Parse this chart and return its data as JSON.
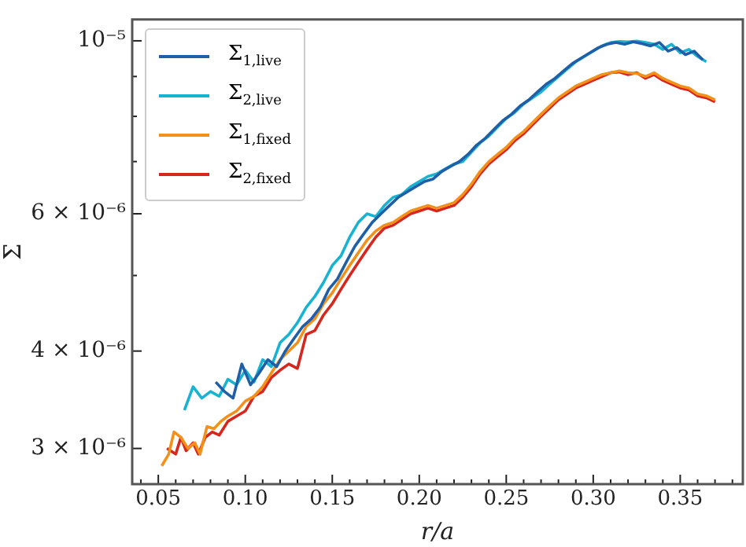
{
  "chart_data": {
    "type": "line",
    "xlabel": "r/a",
    "ylabel": "Σ",
    "log": "y",
    "grid": false,
    "legend": "top left",
    "marker": "none",
    "line_style": "solid",
    "xlim": [
      0.035,
      0.386
    ],
    "ylim": [
      2.7e-06,
      1.065e-05
    ],
    "xticks": [
      {
        "value": 0.04,
        "label": null
      },
      0.05,
      {
        "value": 0.06,
        "label": null
      },
      {
        "value": 0.07,
        "label": null
      },
      {
        "value": 0.08,
        "label": null
      },
      {
        "value": 0.09,
        "label": null
      },
      {
        "value": 0.1,
        "label": "0.10"
      },
      {
        "value": 0.11,
        "label": null
      },
      {
        "value": 0.12,
        "label": null
      },
      {
        "value": 0.13,
        "label": null
      },
      {
        "value": 0.14,
        "label": null
      },
      0.15,
      {
        "value": 0.16,
        "label": null
      },
      {
        "value": 0.17,
        "label": null
      },
      {
        "value": 0.18,
        "label": null
      },
      {
        "value": 0.19,
        "label": null
      },
      {
        "value": 0.2,
        "label": "0.20"
      },
      {
        "value": 0.21,
        "label": null
      },
      {
        "value": 0.22,
        "label": null
      },
      {
        "value": 0.23,
        "label": null
      },
      {
        "value": 0.24,
        "label": null
      },
      0.25,
      {
        "value": 0.26,
        "label": null
      },
      {
        "value": 0.27,
        "label": null
      },
      {
        "value": 0.28,
        "label": null
      },
      {
        "value": 0.29,
        "label": null
      },
      {
        "value": 0.3,
        "label": "0.30"
      },
      {
        "value": 0.31,
        "label": null
      },
      {
        "value": 0.32,
        "label": null
      },
      {
        "value": 0.33,
        "label": null
      },
      {
        "value": 0.34,
        "label": null
      },
      0.35,
      {
        "value": 0.36,
        "label": null
      },
      {
        "value": 0.37,
        "label": null
      },
      {
        "value": 0.38,
        "label": null
      }
    ],
    "yticks": [
      {
        "value": 3e-06,
        "label": "3 × 10⁻⁶"
      },
      {
        "value": 4e-06,
        "label": "4 × 10⁻⁶"
      },
      {
        "value": 5e-06,
        "label": null
      },
      {
        "value": 6e-06,
        "label": "6 × 10⁻⁶"
      },
      {
        "value": 7e-06,
        "label": null
      },
      {
        "value": 8e-06,
        "label": null
      },
      {
        "value": 9e-06,
        "label": null
      },
      {
        "value": 1e-05,
        "label": "10⁻⁵"
      }
    ],
    "series": [
      {
        "name": "Σ$_{1,live}$",
        "color": "#1f5fa8",
        "x": [
          0.083,
          0.088,
          0.093,
          0.098,
          0.103,
          0.108,
          0.113,
          0.118,
          0.123,
          0.128,
          0.133,
          0.138,
          0.143,
          0.148,
          0.153,
          0.158,
          0.163,
          0.168,
          0.173,
          0.178,
          0.183,
          0.188,
          0.193,
          0.198,
          0.203,
          0.208,
          0.213,
          0.218,
          0.223,
          0.228,
          0.233,
          0.238,
          0.243,
          0.248,
          0.253,
          0.258,
          0.263,
          0.268,
          0.273,
          0.278,
          0.283,
          0.288,
          0.293,
          0.298,
          0.303,
          0.308,
          0.313,
          0.318,
          0.323,
          0.328,
          0.333,
          0.338,
          0.343,
          0.348,
          0.353,
          0.358,
          0.363
        ],
        "values": [
          3.65e-06,
          3.55e-06,
          3.48e-06,
          3.85e-06,
          3.62e-06,
          3.75e-06,
          3.9e-06,
          3.82e-06,
          4e-06,
          4.15e-06,
          4.3e-06,
          4.4e-06,
          4.55e-06,
          4.8e-06,
          4.95e-06,
          5.2e-06,
          5.45e-06,
          5.65e-06,
          5.85e-06,
          6e-06,
          6.15e-06,
          6.3e-06,
          6.4e-06,
          6.5e-06,
          6.6e-06,
          6.65e-06,
          6.8e-06,
          6.9e-06,
          7e-06,
          7.15e-06,
          7.35e-06,
          7.5e-06,
          7.7e-06,
          7.9e-06,
          8.05e-06,
          8.25e-06,
          8.4e-06,
          8.6e-06,
          8.8e-06,
          8.95e-06,
          9.15e-06,
          9.35e-06,
          9.5e-06,
          9.65e-06,
          9.8e-06,
          9.9e-06,
          9.95e-06,
          9.9e-06,
          9.97e-06,
          9.92e-06,
          9.85e-06,
          9.95e-06,
          9.7e-06,
          9.8e-06,
          9.6e-06,
          9.7e-06,
          9.45e-06
        ]
      },
      {
        "name": "Σ$_{2,live}$",
        "color": "#17b3d0",
        "x": [
          0.065,
          0.07,
          0.075,
          0.08,
          0.085,
          0.09,
          0.095,
          0.1,
          0.105,
          0.11,
          0.115,
          0.12,
          0.125,
          0.13,
          0.135,
          0.14,
          0.145,
          0.15,
          0.155,
          0.16,
          0.165,
          0.17,
          0.175,
          0.18,
          0.185,
          0.19,
          0.195,
          0.2,
          0.205,
          0.21,
          0.215,
          0.22,
          0.225,
          0.23,
          0.235,
          0.24,
          0.245,
          0.25,
          0.255,
          0.26,
          0.265,
          0.27,
          0.275,
          0.28,
          0.285,
          0.29,
          0.295,
          0.3,
          0.305,
          0.31,
          0.315,
          0.32,
          0.325,
          0.33,
          0.335,
          0.34,
          0.345,
          0.35,
          0.355,
          0.36,
          0.365
        ],
        "values": [
          3.36e-06,
          3.6e-06,
          3.48e-06,
          3.55e-06,
          3.5e-06,
          3.68e-06,
          3.62e-06,
          3.78e-06,
          3.65e-06,
          3.9e-06,
          3.82e-06,
          4.1e-06,
          4.2e-06,
          4.35e-06,
          4.55e-06,
          4.7e-06,
          4.9e-06,
          5.15e-06,
          5.3e-06,
          5.6e-06,
          5.85e-06,
          6e-06,
          5.95e-06,
          6.15e-06,
          6.3e-06,
          6.35e-06,
          6.5e-06,
          6.6e-06,
          6.7e-06,
          6.75e-06,
          6.85e-06,
          6.95e-06,
          7e-06,
          7.2e-06,
          7.4e-06,
          7.55e-06,
          7.75e-06,
          7.95e-06,
          8.1e-06,
          8.3e-06,
          8.45e-06,
          8.6e-06,
          8.8e-06,
          9e-06,
          9.2e-06,
          9.4e-06,
          9.55e-06,
          9.7e-06,
          9.85e-06,
          9.95e-06,
          9.98e-06,
          9.97e-06,
          9.99e-06,
          9.95e-06,
          9.9e-06,
          9.75e-06,
          9.9e-06,
          9.65e-06,
          9.75e-06,
          9.55e-06,
          9.4e-06
        ]
      },
      {
        "name": "Σ$_{1,fixed}$",
        "color": "#f39019",
        "x": [
          0.052,
          0.056,
          0.059,
          0.063,
          0.067,
          0.071,
          0.074,
          0.078,
          0.082,
          0.086,
          0.09,
          0.095,
          0.1,
          0.105,
          0.11,
          0.115,
          0.12,
          0.125,
          0.13,
          0.135,
          0.14,
          0.145,
          0.15,
          0.155,
          0.16,
          0.165,
          0.17,
          0.175,
          0.18,
          0.185,
          0.19,
          0.195,
          0.2,
          0.205,
          0.21,
          0.215,
          0.22,
          0.225,
          0.23,
          0.235,
          0.24,
          0.245,
          0.25,
          0.255,
          0.26,
          0.265,
          0.27,
          0.275,
          0.28,
          0.285,
          0.29,
          0.295,
          0.3,
          0.305,
          0.31,
          0.315,
          0.32,
          0.325,
          0.33,
          0.335,
          0.34,
          0.345,
          0.35,
          0.355,
          0.36,
          0.365,
          0.37
        ],
        "values": [
          2.85e-06,
          2.95e-06,
          3.15e-06,
          3.1e-06,
          3e-06,
          3.05e-06,
          2.95e-06,
          3.2e-06,
          3.18e-06,
          3.25e-06,
          3.3e-06,
          3.35e-06,
          3.45e-06,
          3.5e-06,
          3.6e-06,
          3.75e-06,
          3.9e-06,
          4e-06,
          4.1e-06,
          4.3e-06,
          4.4e-06,
          4.6e-06,
          4.75e-06,
          4.95e-06,
          5.15e-06,
          5.35e-06,
          5.55e-06,
          5.7e-06,
          5.8e-06,
          5.85e-06,
          5.95e-06,
          6.05e-06,
          6.1e-06,
          6.15e-06,
          6.1e-06,
          6.15e-06,
          6.2e-06,
          6.35e-06,
          6.55e-06,
          6.8e-06,
          7e-06,
          7.15e-06,
          7.3e-06,
          7.5e-06,
          7.65e-06,
          7.85e-06,
          8.05e-06,
          8.25e-06,
          8.45e-06,
          8.6e-06,
          8.75e-06,
          8.85e-06,
          8.95e-06,
          9.05e-06,
          9.1e-06,
          9.15e-06,
          9.1e-06,
          9.08e-06,
          9e-06,
          9.1e-06,
          8.95e-06,
          8.85e-06,
          8.75e-06,
          8.7e-06,
          8.55e-06,
          8.5e-06,
          8.4e-06
        ]
      },
      {
        "name": "Σ$_{2,fixed}$",
        "color": "#d7261e",
        "x": [
          0.055,
          0.06,
          0.063,
          0.066,
          0.07,
          0.073,
          0.077,
          0.081,
          0.085,
          0.09,
          0.095,
          0.1,
          0.105,
          0.11,
          0.115,
          0.12,
          0.125,
          0.13,
          0.135,
          0.14,
          0.145,
          0.15,
          0.155,
          0.16,
          0.165,
          0.17,
          0.175,
          0.18,
          0.185,
          0.19,
          0.195,
          0.2,
          0.205,
          0.21,
          0.215,
          0.22,
          0.225,
          0.23,
          0.235,
          0.24,
          0.245,
          0.25,
          0.255,
          0.26,
          0.265,
          0.27,
          0.275,
          0.28,
          0.285,
          0.29,
          0.295,
          0.3,
          0.305,
          0.31,
          0.315,
          0.32,
          0.325,
          0.33,
          0.335,
          0.34,
          0.345,
          0.35,
          0.355,
          0.36,
          0.365,
          0.37
        ],
        "values": [
          3e-06,
          2.95e-06,
          3.1e-06,
          2.98e-06,
          3.05e-06,
          2.95e-06,
          3.1e-06,
          3.15e-06,
          3.12e-06,
          3.25e-06,
          3.3e-06,
          3.35e-06,
          3.5e-06,
          3.55e-06,
          3.7e-06,
          3.78e-06,
          3.85e-06,
          3.8e-06,
          4.2e-06,
          4.25e-06,
          4.45e-06,
          4.6e-06,
          4.8e-06,
          5e-06,
          5.2e-06,
          5.4e-06,
          5.6e-06,
          5.75e-06,
          5.8e-06,
          5.9e-06,
          6e-06,
          6.05e-06,
          6.1e-06,
          6.05e-06,
          6.1e-06,
          6.15e-06,
          6.3e-06,
          6.5e-06,
          6.75e-06,
          6.95e-06,
          7.1e-06,
          7.25e-06,
          7.45e-06,
          7.6e-06,
          7.8e-06,
          8e-06,
          8.2e-06,
          8.4e-06,
          8.55e-06,
          8.7e-06,
          8.8e-06,
          8.9e-06,
          9e-06,
          9.1e-06,
          9.12e-06,
          9.05e-06,
          9.1e-06,
          8.95e-06,
          9.05e-06,
          8.9e-06,
          8.8e-06,
          8.7e-06,
          8.65e-06,
          8.5e-06,
          8.45e-06,
          8.35e-06
        ]
      }
    ]
  }
}
